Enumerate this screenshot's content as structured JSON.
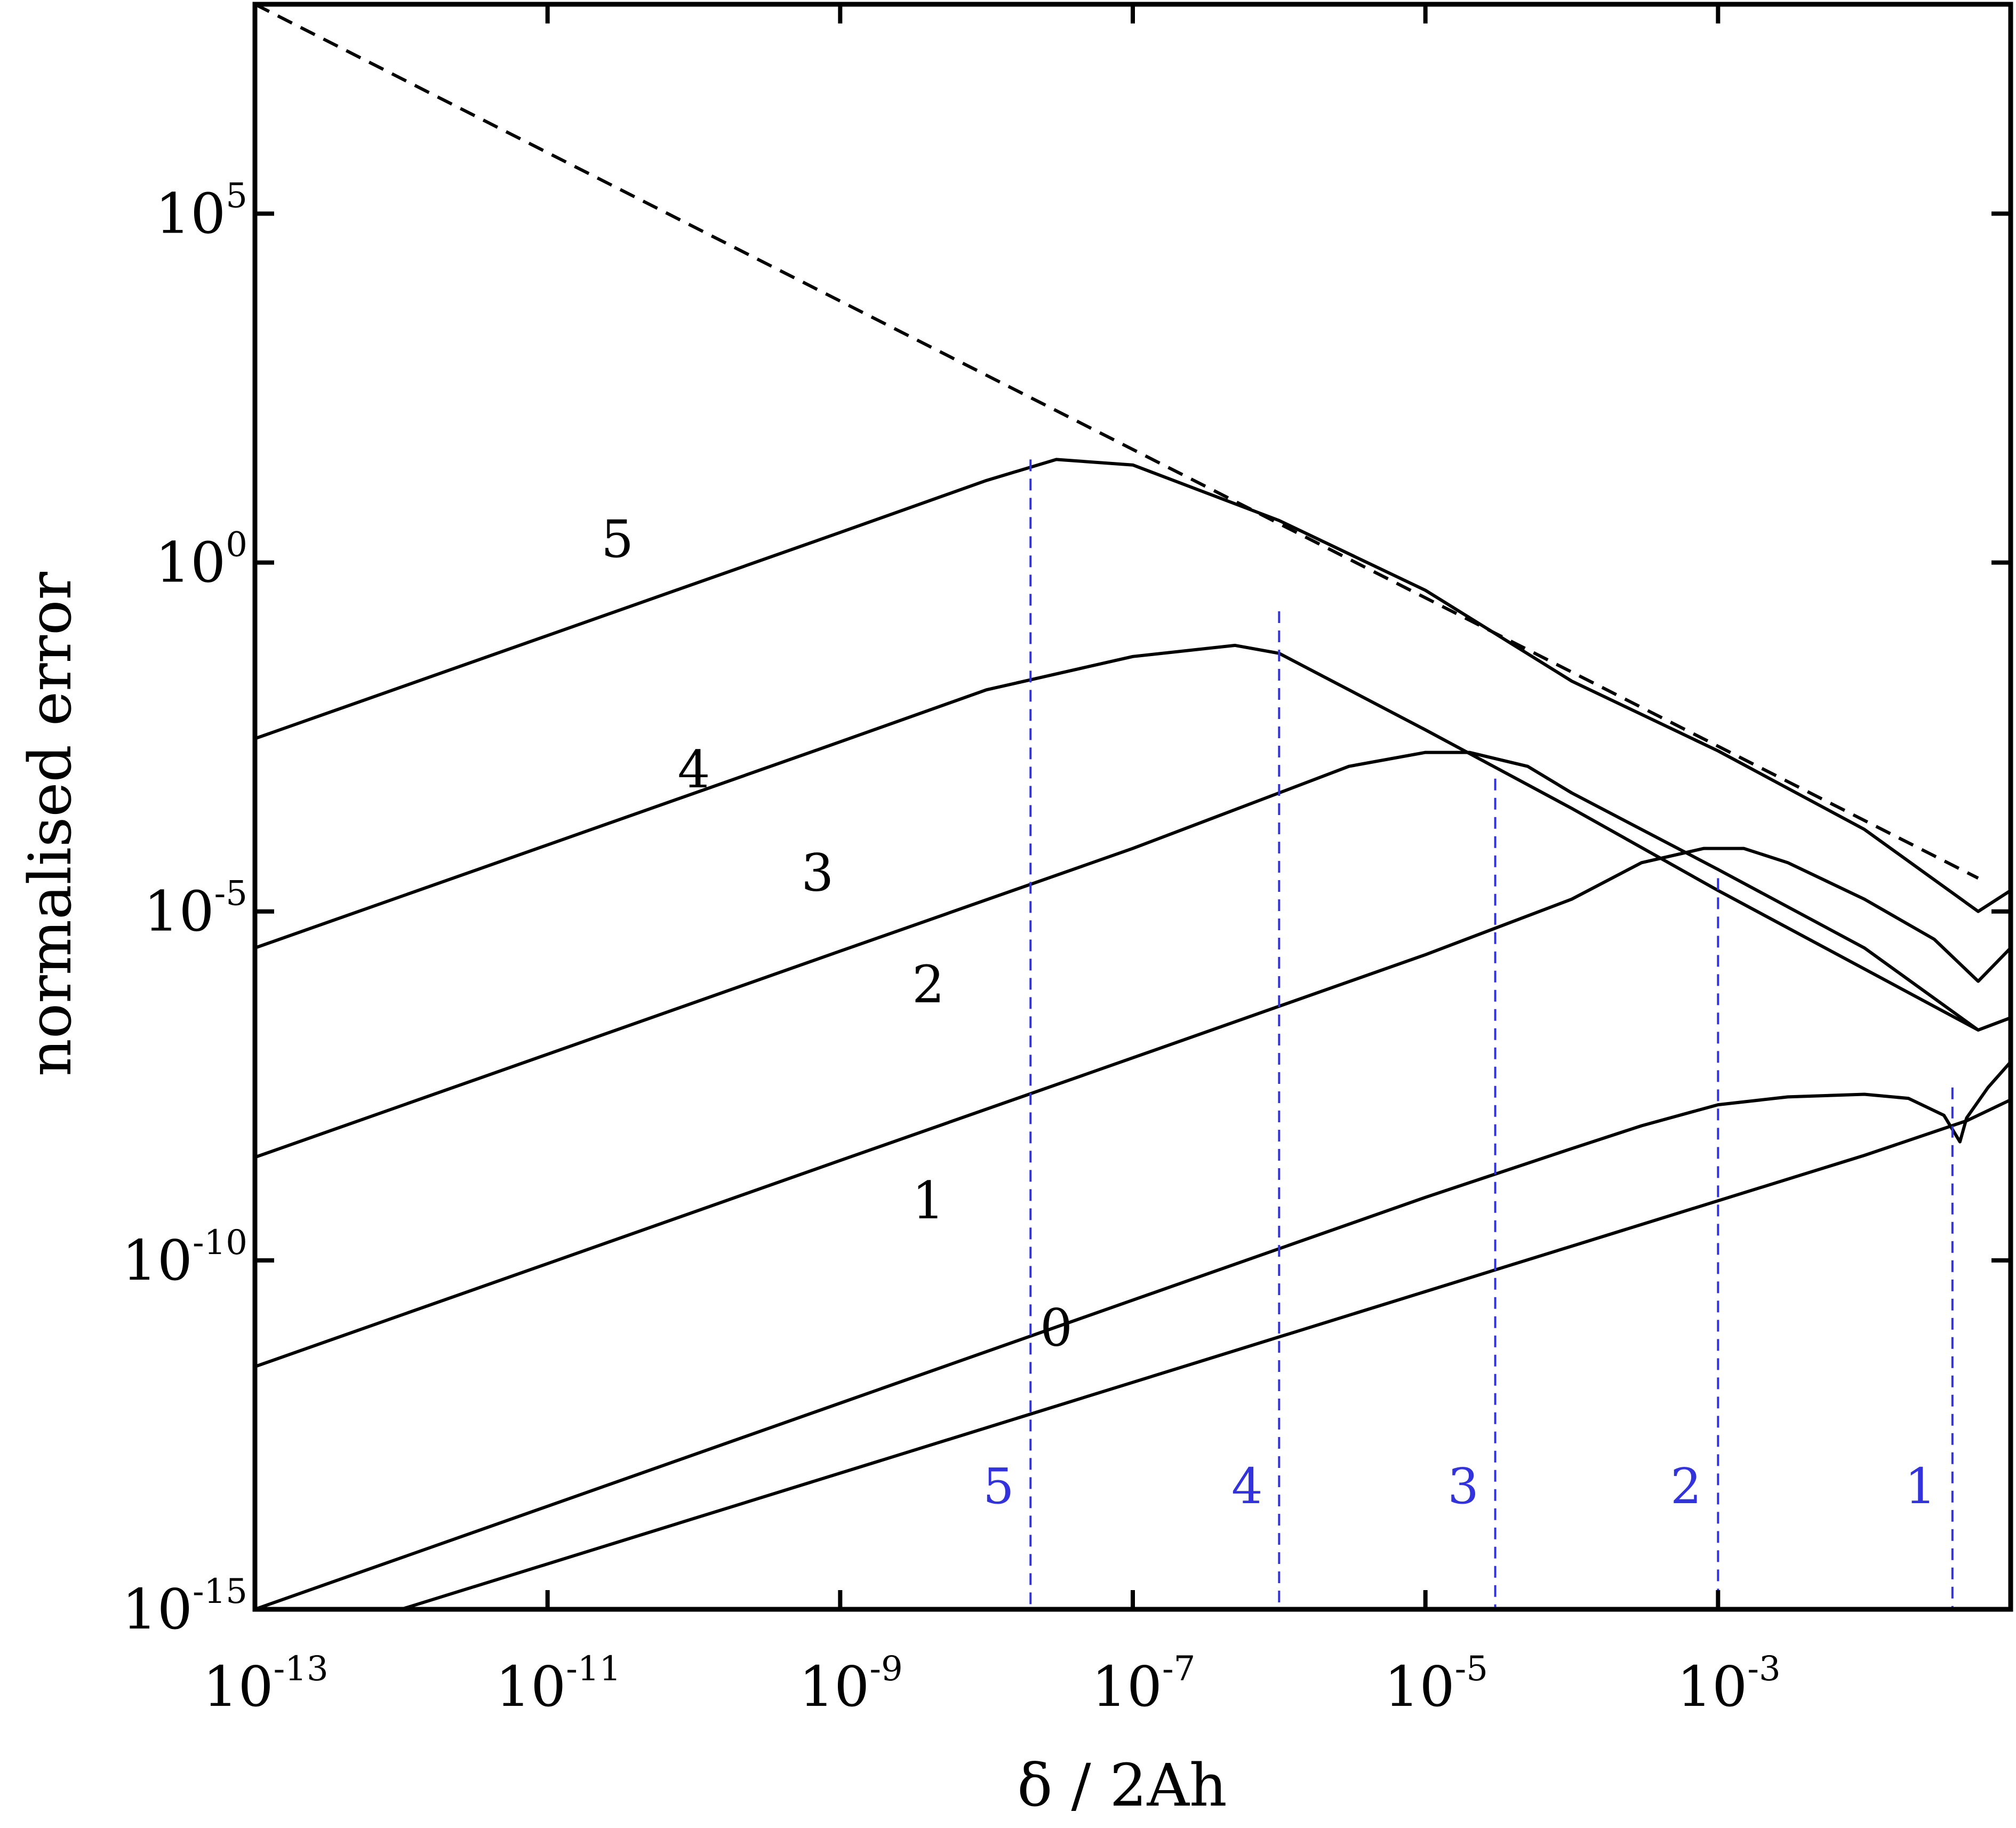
{
  "chart_data": {
    "type": "line",
    "title": "",
    "xlabel": "δ / 2Ah",
    "ylabel": "normalised error",
    "x_scale": "log",
    "y_scale": "log",
    "xlim": [
      1e-13,
      0.1
    ],
    "ylim": [
      1e-15,
      100000000.0
    ],
    "grid": false,
    "legend": "none",
    "x_ticks": [
      {
        "value": 1e-13,
        "base": "10",
        "exp": "-13"
      },
      {
        "value": 1e-11,
        "base": "10",
        "exp": "-11"
      },
      {
        "value": 1e-09,
        "base": "10",
        "exp": "-9"
      },
      {
        "value": 1e-07,
        "base": "10",
        "exp": "-7"
      },
      {
        "value": 1e-05,
        "base": "10",
        "exp": "-5"
      },
      {
        "value": 0.001,
        "base": "10",
        "exp": "-3"
      }
    ],
    "y_ticks": [
      {
        "value": 100000.0,
        "base": "10",
        "exp": "5"
      },
      {
        "value": 1,
        "base": "10",
        "exp": "0"
      },
      {
        "value": 1e-05,
        "base": "10",
        "exp": "-5"
      },
      {
        "value": 1e-10,
        "base": "10",
        "exp": "-10"
      },
      {
        "value": 1e-15,
        "base": "10",
        "exp": "-15"
      }
    ],
    "reference_line": {
      "style": "dashed",
      "points": [
        [
          1e-13,
          100000000.0
        ],
        [
          0.06,
          3e-05
        ]
      ]
    },
    "series": [
      {
        "label": "0",
        "label_at": [
          3e-08,
          6e-12
        ],
        "points": [
          [
            1e-12,
            1e-15
          ],
          [
            1e-10,
            2e-14
          ],
          [
            1e-08,
            4e-13
          ],
          [
            1e-06,
            8e-12
          ],
          [
            0.0001,
            1.6e-10
          ],
          [
            0.01,
            3.2e-09
          ],
          [
            0.05,
            1e-08
          ],
          [
            0.1,
            2e-08
          ]
        ]
      },
      {
        "label": "1",
        "label_at": [
          4e-09,
          4e-10
        ],
        "points": [
          [
            1e-13,
            1e-15
          ],
          [
            1e-11,
            3e-14
          ],
          [
            1e-09,
            9e-13
          ],
          [
            1e-07,
            2.7e-11
          ],
          [
            1e-05,
            8e-10
          ],
          [
            0.0001,
            4e-09
          ],
          [
            0.0003,
            8.5e-09
          ],
          [
            0.001,
            1.7e-08
          ],
          [
            0.003,
            2.2e-08
          ],
          [
            0.01,
            2.4e-08
          ],
          [
            0.02,
            2.1e-08
          ],
          [
            0.035,
            1.2e-08
          ],
          [
            0.045,
            5e-09
          ],
          [
            0.05,
            1.1e-08
          ],
          [
            0.07,
            3e-08
          ],
          [
            0.1,
            7e-08
          ]
        ]
      },
      {
        "label": "2",
        "label_at": [
          4e-09,
          5e-07
        ],
        "points": [
          [
            1e-13,
            3e-12
          ],
          [
            1e-11,
            9e-11
          ],
          [
            1e-09,
            2.7e-09
          ],
          [
            1e-07,
            8e-08
          ],
          [
            1e-05,
            2.4e-06
          ],
          [
            0.0001,
            1.5e-05
          ],
          [
            0.0003,
            5e-05
          ],
          [
            0.0008,
            8e-05
          ],
          [
            0.0015,
            8e-05
          ],
          [
            0.003,
            5e-05
          ],
          [
            0.01,
            1.5e-05
          ],
          [
            0.03,
            4e-06
          ],
          [
            0.06,
            1e-06
          ],
          [
            0.1,
            3e-06
          ]
        ]
      },
      {
        "label": "3",
        "label_at": [
          7e-10,
          2e-05
        ],
        "points": [
          [
            1e-13,
            3e-09
          ],
          [
            1e-11,
            9e-08
          ],
          [
            1e-09,
            2.7e-06
          ],
          [
            1e-07,
            8e-05
          ],
          [
            1e-06,
            0.0005
          ],
          [
            3e-06,
            0.0012
          ],
          [
            1e-05,
            0.0019
          ],
          [
            2e-05,
            0.0019
          ],
          [
            5e-05,
            0.0012
          ],
          [
            0.0001,
            0.0005
          ],
          [
            0.001,
            4e-05
          ],
          [
            0.01,
            3e-06
          ],
          [
            0.06,
            2e-07
          ],
          [
            0.1,
            3e-07
          ]
        ]
      },
      {
        "label": "4",
        "label_at": [
          1e-10,
          0.0006
        ],
        "points": [
          [
            1e-13,
            3e-06
          ],
          [
            1e-11,
            9e-05
          ],
          [
            1e-09,
            0.0027
          ],
          [
            1e-08,
            0.015
          ],
          [
            1e-07,
            0.045
          ],
          [
            5e-07,
            0.065
          ],
          [
            1e-06,
            0.05
          ],
          [
            1e-05,
            0.004
          ],
          [
            0.0001,
            0.0003
          ],
          [
            0.001,
            2e-05
          ],
          [
            0.01,
            1.5e-06
          ],
          [
            0.06,
            2e-07
          ],
          [
            0.1,
            3e-07
          ]
        ]
      },
      {
        "label": "5",
        "label_at": [
          3e-11,
          1.2
        ],
        "points": [
          [
            1e-13,
            0.003
          ],
          [
            1e-11,
            0.09
          ],
          [
            1e-09,
            2.7
          ],
          [
            1e-08,
            15
          ],
          [
            3e-08,
            30
          ],
          [
            1e-07,
            25
          ],
          [
            1e-06,
            4
          ],
          [
            1e-05,
            0.4
          ],
          [
            0.0001,
            0.02
          ],
          [
            0.001,
            0.002
          ],
          [
            0.01,
            0.00015
          ],
          [
            0.06,
            1e-05
          ],
          [
            0.1,
            2e-05
          ]
        ]
      }
    ],
    "optimal_markers": [
      {
        "label": "5",
        "x": 2e-08,
        "curve_y": 30
      },
      {
        "label": "4",
        "x": 1e-06,
        "curve_y": 0.2
      },
      {
        "label": "3",
        "x": 3e-05,
        "curve_y": 0.0008
      },
      {
        "label": "2",
        "x": 0.001,
        "curve_y": 3e-05
      },
      {
        "label": "1",
        "x": 0.04,
        "curve_y": 3e-08
      }
    ],
    "colors": {
      "curves": "#000000",
      "reference": "#000000",
      "markers": "#3333dd"
    }
  }
}
